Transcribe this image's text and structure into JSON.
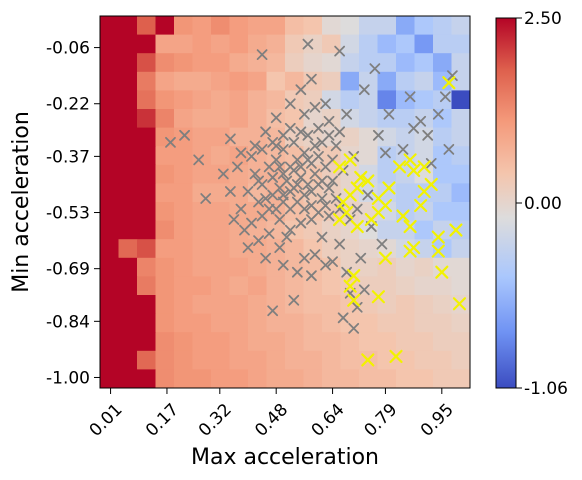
{
  "chart_data": {
    "type": "heatmap",
    "title": "",
    "xlabel": "Max acceleration",
    "ylabel": "Min acceleration",
    "x_tick_labels": [
      "0.01",
      "0.17",
      "0.32",
      "0.48",
      "0.64",
      "0.79",
      "0.95"
    ],
    "y_tick_labels": [
      "-1.00",
      "-0.84",
      "-0.69",
      "-0.53",
      "-0.37",
      "-0.22",
      "-0.06"
    ],
    "xlim": [
      -0.02,
      1.03
    ],
    "ylim": [
      0.03,
      -1.03
    ],
    "grid_size": [
      20,
      20
    ],
    "colorbar": {
      "min": -1.06,
      "max": 2.5,
      "center": 0.0,
      "tick_labels": [
        "2.50",
        "0.00",
        "-1.06"
      ],
      "colormap": "coolwarm"
    },
    "grid_values": [
      [
        2.5,
        2.5,
        1.9,
        2.5,
        1.3,
        1.2,
        1.4,
        1.2,
        1.1,
        1.1,
        0.7,
        0.6,
        0.1,
        0.0,
        -0.2,
        -0.2,
        -0.6,
        -0.4,
        -0.3,
        -0.2
      ],
      [
        2.5,
        2.5,
        2.5,
        1.1,
        1.1,
        1.2,
        1.1,
        1.2,
        1.0,
        0.9,
        0.5,
        0.3,
        0.5,
        -0.1,
        -0.3,
        -0.5,
        -0.4,
        -0.7,
        -0.3,
        -0.3
      ],
      [
        2.5,
        2.5,
        2.0,
        1.4,
        1.3,
        1.2,
        1.2,
        1.0,
        0.9,
        0.8,
        0.4,
        0.2,
        0.1,
        -0.2,
        -0.3,
        -0.3,
        -0.5,
        -0.4,
        -0.6,
        -0.2
      ],
      [
        2.5,
        2.5,
        1.6,
        1.1,
        1.0,
        1.0,
        1.1,
        1.2,
        1.1,
        0.6,
        0.8,
        0.5,
        0.4,
        -0.6,
        -0.2,
        -0.6,
        -0.3,
        -0.2,
        -0.5,
        -0.2
      ],
      [
        2.5,
        2.5,
        1.7,
        1.3,
        1.2,
        1.1,
        1.0,
        1.1,
        0.9,
        0.8,
        0.5,
        0.4,
        -0.1,
        -0.3,
        -0.2,
        -0.8,
        -0.5,
        -0.4,
        -0.3,
        -1.06
      ],
      [
        2.5,
        2.5,
        2.2,
        1.5,
        1.1,
        1.0,
        1.0,
        1.1,
        0.9,
        0.7,
        0.6,
        0.2,
        0.3,
        -0.1,
        -0.2,
        -0.3,
        -0.3,
        -0.2,
        -0.4,
        -0.2
      ],
      [
        2.5,
        2.5,
        2.5,
        1.3,
        1.2,
        1.1,
        1.1,
        0.9,
        0.9,
        0.8,
        0.4,
        0.3,
        0.2,
        0.3,
        0.1,
        -0.1,
        -0.2,
        -0.1,
        -0.3,
        -0.2
      ],
      [
        2.5,
        2.5,
        2.5,
        1.2,
        1.2,
        1.1,
        1.0,
        1.1,
        0.9,
        0.8,
        0.7,
        0.4,
        0.5,
        0.2,
        0.1,
        -0.3,
        -0.2,
        -0.1,
        -0.4,
        -0.3
      ],
      [
        2.5,
        2.5,
        2.5,
        1.3,
        1.2,
        1.1,
        1.1,
        1.0,
        0.9,
        0.9,
        0.6,
        0.6,
        0.4,
        0.2,
        -0.1,
        -0.3,
        -0.2,
        0.0,
        -0.4,
        -0.4
      ],
      [
        2.5,
        2.5,
        2.5,
        1.2,
        1.2,
        1.0,
        1.0,
        1.0,
        0.8,
        0.9,
        0.7,
        0.5,
        0.4,
        0.2,
        -0.1,
        -0.2,
        -0.3,
        -0.3,
        -0.3,
        -0.5
      ],
      [
        2.5,
        2.5,
        2.5,
        1.3,
        1.2,
        1.1,
        1.1,
        1.0,
        1.0,
        0.9,
        0.7,
        0.6,
        0.5,
        0.3,
        0.2,
        -0.1,
        -0.3,
        -0.2,
        -0.4,
        -0.4
      ],
      [
        2.5,
        2.5,
        2.5,
        1.4,
        1.2,
        1.1,
        1.1,
        1.0,
        0.9,
        0.8,
        0.6,
        0.5,
        0.3,
        0.2,
        0.0,
        -0.2,
        -0.2,
        -0.4,
        -0.2,
        -0.3
      ],
      [
        2.5,
        1.8,
        2.0,
        1.2,
        1.2,
        1.1,
        1.1,
        1.0,
        1.0,
        0.9,
        0.8,
        0.6,
        0.4,
        0.3,
        0.2,
        0.1,
        -0.1,
        -0.2,
        -0.4,
        -0.2
      ],
      [
        2.5,
        2.5,
        1.5,
        1.3,
        1.2,
        1.1,
        1.1,
        1.1,
        1.0,
        0.9,
        0.8,
        0.7,
        0.6,
        0.3,
        0.3,
        0.4,
        0.2,
        0.3,
        0.1,
        0.1
      ],
      [
        2.5,
        2.5,
        1.6,
        1.3,
        1.2,
        1.2,
        1.1,
        1.0,
        1.1,
        0.9,
        0.8,
        0.7,
        0.6,
        0.5,
        0.4,
        0.4,
        0.3,
        0.2,
        0.2,
        0.1
      ],
      [
        2.5,
        2.5,
        2.5,
        1.3,
        1.2,
        1.1,
        1.1,
        1.1,
        1.0,
        0.9,
        0.8,
        0.7,
        0.7,
        0.6,
        0.5,
        0.4,
        0.5,
        0.4,
        0.3,
        0.2
      ],
      [
        2.5,
        2.5,
        2.5,
        1.3,
        1.2,
        1.2,
        1.1,
        1.1,
        1.0,
        0.9,
        0.9,
        0.8,
        0.7,
        0.6,
        0.6,
        0.5,
        0.5,
        0.4,
        0.4,
        0.3
      ],
      [
        2.5,
        2.5,
        2.5,
        1.4,
        1.3,
        1.2,
        1.2,
        1.1,
        1.0,
        1.0,
        0.9,
        0.8,
        0.8,
        0.7,
        0.6,
        0.6,
        0.5,
        0.5,
        0.4,
        0.4
      ],
      [
        2.5,
        2.5,
        1.8,
        1.4,
        1.3,
        1.2,
        1.2,
        1.1,
        1.1,
        1.0,
        0.9,
        0.9,
        0.8,
        0.7,
        0.7,
        0.6,
        0.6,
        0.5,
        0.5,
        0.4
      ],
      [
        2.5,
        2.5,
        2.5,
        1.4,
        1.3,
        1.3,
        1.2,
        1.2,
        1.1,
        1.0,
        1.0,
        0.9,
        0.8,
        0.8,
        0.7,
        0.7,
        0.6,
        0.6,
        0.5,
        0.5
      ]
    ],
    "series": [
      {
        "name": "",
        "marker": "x",
        "color": "#7f7f7f",
        "points": [
          [
            0.56,
            -0.66
          ],
          [
            0.59,
            -0.65
          ],
          [
            0.69,
            -0.76
          ],
          [
            0.53,
            -0.78
          ],
          [
            0.47,
            -0.81
          ],
          [
            0.64,
            -0.67
          ],
          [
            0.66,
            -0.62
          ],
          [
            0.61,
            -0.6
          ],
          [
            0.43,
            -0.61
          ],
          [
            0.4,
            -0.63
          ],
          [
            0.46,
            -0.59
          ],
          [
            0.52,
            -0.58
          ],
          [
            0.55,
            -0.56
          ],
          [
            0.58,
            -0.55
          ],
          [
            0.6,
            -0.53
          ],
          [
            0.63,
            -0.54
          ],
          [
            0.66,
            -0.52
          ],
          [
            0.69,
            -0.55
          ],
          [
            0.49,
            -0.55
          ],
          [
            0.46,
            -0.52
          ],
          [
            0.43,
            -0.5
          ],
          [
            0.47,
            -0.48
          ],
          [
            0.5,
            -0.5
          ],
          [
            0.52,
            -0.52
          ],
          [
            0.54,
            -0.5
          ],
          [
            0.56,
            -0.48
          ],
          [
            0.58,
            -0.51
          ],
          [
            0.61,
            -0.49
          ],
          [
            0.63,
            -0.46
          ],
          [
            0.65,
            -0.49
          ],
          [
            0.49,
            -0.46
          ],
          [
            0.51,
            -0.44
          ],
          [
            0.53,
            -0.46
          ],
          [
            0.55,
            -0.43
          ],
          [
            0.57,
            -0.45
          ],
          [
            0.59,
            -0.42
          ],
          [
            0.61,
            -0.44
          ],
          [
            0.44,
            -0.45
          ],
          [
            0.42,
            -0.42
          ],
          [
            0.46,
            -0.4
          ],
          [
            0.48,
            -0.38
          ],
          [
            0.52,
            -0.4
          ],
          [
            0.54,
            -0.38
          ],
          [
            0.56,
            -0.36
          ],
          [
            0.58,
            -0.39
          ],
          [
            0.6,
            -0.37
          ],
          [
            0.62,
            -0.4
          ],
          [
            0.64,
            -0.38
          ],
          [
            0.67,
            -0.41
          ],
          [
            0.7,
            -0.37
          ],
          [
            0.4,
            -0.47
          ],
          [
            0.38,
            -0.52
          ],
          [
            0.36,
            -0.55
          ],
          [
            0.39,
            -0.58
          ],
          [
            0.35,
            -0.47
          ],
          [
            0.33,
            -0.42
          ],
          [
            0.37,
            -0.4
          ],
          [
            0.41,
            -0.37
          ],
          [
            0.44,
            -0.35
          ],
          [
            0.47,
            -0.33
          ],
          [
            0.5,
            -0.35
          ],
          [
            0.53,
            -0.33
          ],
          [
            0.57,
            -0.31
          ],
          [
            0.6,
            -0.29
          ],
          [
            0.63,
            -0.27
          ],
          [
            0.66,
            -0.3
          ],
          [
            0.68,
            -0.25
          ],
          [
            0.56,
            -0.25
          ],
          [
            0.59,
            -0.23
          ],
          [
            0.62,
            -0.22
          ],
          [
            0.52,
            -0.22
          ],
          [
            0.55,
            -0.18
          ],
          [
            0.58,
            -0.15
          ],
          [
            0.48,
            -0.26
          ],
          [
            0.45,
            -0.3
          ],
          [
            0.42,
            -0.34
          ],
          [
            0.28,
            -0.49
          ],
          [
            0.26,
            -0.38
          ],
          [
            0.22,
            -0.31
          ],
          [
            0.18,
            -0.33
          ],
          [
            0.35,
            -0.32
          ],
          [
            0.38,
            -0.36
          ],
          [
            0.72,
            -0.43
          ],
          [
            0.74,
            -0.48
          ],
          [
            0.71,
            -0.52
          ],
          [
            0.75,
            -0.57
          ],
          [
            0.78,
            -0.62
          ],
          [
            0.72,
            -0.66
          ],
          [
            0.68,
            -0.7
          ],
          [
            0.73,
            -0.75
          ],
          [
            0.7,
            -0.86
          ],
          [
            0.67,
            -0.83
          ],
          [
            0.71,
            -0.8
          ],
          [
            0.79,
            -0.36
          ],
          [
            0.77,
            -0.31
          ],
          [
            0.8,
            -0.25
          ],
          [
            0.84,
            -0.35
          ],
          [
            0.87,
            -0.29
          ],
          [
            0.89,
            -0.27
          ],
          [
            0.91,
            -0.31
          ],
          [
            0.94,
            -0.25
          ],
          [
            0.96,
            -0.2
          ],
          [
            0.98,
            -0.14
          ],
          [
            0.73,
            -0.18
          ],
          [
            0.76,
            -0.12
          ],
          [
            0.66,
            -0.07
          ],
          [
            0.57,
            -0.05
          ],
          [
            0.44,
            -0.08
          ],
          [
            0.86,
            -0.2
          ],
          [
            0.92,
            -0.39
          ],
          [
            0.97,
            -0.35
          ],
          [
            0.51,
            -0.6
          ],
          [
            0.49,
            -0.63
          ],
          [
            0.45,
            -0.66
          ],
          [
            0.5,
            -0.68
          ],
          [
            0.54,
            -0.7
          ],
          [
            0.58,
            -0.71
          ],
          [
            0.62,
            -0.68
          ],
          [
            0.41,
            -0.56
          ],
          [
            0.44,
            -0.54
          ],
          [
            0.48,
            -0.52
          ],
          [
            0.5,
            -0.48
          ],
          [
            0.52,
            -0.47
          ],
          [
            0.54,
            -0.45
          ],
          [
            0.56,
            -0.52
          ],
          [
            0.58,
            -0.47
          ],
          [
            0.6,
            -0.45
          ],
          [
            0.62,
            -0.51
          ],
          [
            0.64,
            -0.44
          ],
          [
            0.5,
            -0.42
          ],
          [
            0.53,
            -0.41
          ],
          [
            0.47,
            -0.43
          ],
          [
            0.45,
            -0.49
          ],
          [
            0.43,
            -0.44
          ],
          [
            0.49,
            -0.4
          ],
          [
            0.55,
            -0.4
          ],
          [
            0.57,
            -0.38
          ],
          [
            0.59,
            -0.34
          ],
          [
            0.61,
            -0.33
          ],
          [
            0.63,
            -0.31
          ],
          [
            0.65,
            -0.34
          ],
          [
            0.55,
            -0.3
          ],
          [
            0.52,
            -0.29
          ],
          [
            0.5,
            -0.31
          ],
          [
            0.48,
            -0.34
          ]
        ]
      },
      {
        "name": "",
        "marker": "x",
        "color": "#f2f200",
        "points": [
          [
            0.74,
            -0.95
          ],
          [
            0.82,
            -0.94
          ],
          [
            1.0,
            -0.79
          ],
          [
            0.7,
            -0.78
          ],
          [
            0.77,
            -0.77
          ],
          [
            0.69,
            -0.74
          ],
          [
            0.7,
            -0.71
          ],
          [
            0.95,
            -0.7
          ],
          [
            0.79,
            -0.66
          ],
          [
            0.86,
            -0.64
          ],
          [
            0.87,
            -0.63
          ],
          [
            0.94,
            -0.64
          ],
          [
            0.94,
            -0.6
          ],
          [
            0.99,
            -0.58
          ],
          [
            0.66,
            -0.55
          ],
          [
            0.68,
            -0.53
          ],
          [
            0.71,
            -0.57
          ],
          [
            0.75,
            -0.55
          ],
          [
            0.77,
            -0.53
          ],
          [
            0.79,
            -0.51
          ],
          [
            0.84,
            -0.54
          ],
          [
            0.86,
            -0.57
          ],
          [
            0.89,
            -0.51
          ],
          [
            0.9,
            -0.47
          ],
          [
            0.92,
            -0.45
          ],
          [
            0.67,
            -0.5
          ],
          [
            0.69,
            -0.48
          ],
          [
            0.71,
            -0.46
          ],
          [
            0.72,
            -0.43
          ],
          [
            0.74,
            -0.44
          ],
          [
            0.77,
            -0.49
          ],
          [
            0.8,
            -0.46
          ],
          [
            0.66,
            -0.4
          ],
          [
            0.69,
            -0.38
          ],
          [
            0.83,
            -0.4
          ],
          [
            0.86,
            -0.38
          ],
          [
            0.87,
            -0.41
          ],
          [
            0.9,
            -0.4
          ],
          [
            0.97,
            -0.16
          ]
        ]
      }
    ]
  }
}
